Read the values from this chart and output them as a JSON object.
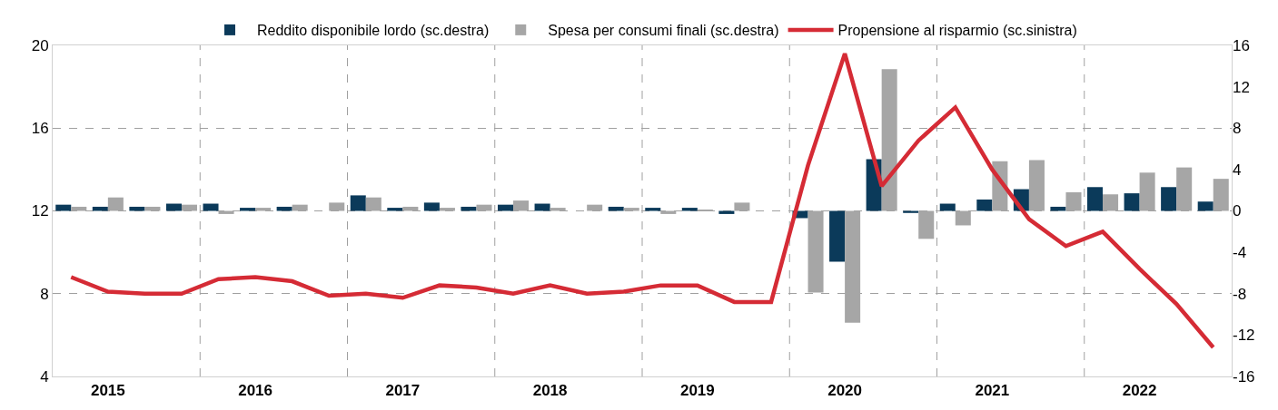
{
  "chart_data": {
    "type": "bar",
    "categories": [
      null,
      "2015",
      null,
      null,
      null,
      "2016",
      null,
      null,
      null,
      "2017",
      null,
      null,
      null,
      "2018",
      null,
      null,
      null,
      "2019",
      null,
      null,
      null,
      "2020",
      null,
      null,
      null,
      "2021",
      null,
      null,
      null,
      "2022",
      null,
      null
    ],
    "series": [
      {
        "name": "Reddito disponibile lordo (sc.destra)",
        "axis": "y2",
        "color": "#0b3a5a",
        "values": [
          0.6,
          0.4,
          0.4,
          0.7,
          0.7,
          0.3,
          0.4,
          0,
          1.5,
          0.3,
          0.8,
          0.4,
          0.6,
          0.7,
          0,
          0.4,
          0.3,
          0.3,
          -0.3,
          0,
          -0.7,
          -4.9,
          5.0,
          -0.2,
          0.7,
          1.1,
          2.1,
          0.4,
          2.3,
          1.7,
          2.3,
          0.9
        ]
      },
      {
        "name": "Spesa per consumi finali (sc.destra)",
        "axis": "y2",
        "color": "#a6a6a6",
        "values": [
          0.4,
          1.3,
          0.4,
          0.6,
          -0.3,
          0.3,
          0.6,
          0.8,
          1.3,
          0.4,
          0.3,
          0.6,
          1.0,
          0.3,
          0.6,
          0.3,
          -0.3,
          0.1,
          0.8,
          0,
          -7.9,
          -10.8,
          13.7,
          -2.7,
          -1.4,
          4.8,
          4.9,
          1.8,
          1.6,
          3.7,
          4.2,
          3.1
        ]
      },
      {
        "name": "Propensione al risparmio (sc.sinistra)",
        "type": "line",
        "axis": "y",
        "color": "#d52b35",
        "values": [
          8.8,
          8.1,
          8.0,
          8.0,
          8.7,
          8.8,
          8.6,
          7.9,
          8.0,
          7.8,
          8.4,
          8.3,
          8.0,
          8.4,
          8.0,
          8.1,
          8.4,
          8.4,
          7.6,
          7.6,
          14.2,
          19.6,
          13.2,
          15.4,
          17.0,
          14.0,
          11.6,
          10.3,
          11.0,
          9.2,
          7.5,
          5.4
        ]
      }
    ],
    "ylim": [
      4,
      20
    ],
    "yticks": [
      4,
      8,
      12,
      16,
      20
    ],
    "y2lim": [
      -16,
      16
    ],
    "y2ticks": [
      -16,
      -12,
      -8,
      -4,
      0,
      4,
      8,
      12,
      16
    ],
    "grid": true,
    "legend": "top",
    "line_style": "solid",
    "marker": "none"
  }
}
